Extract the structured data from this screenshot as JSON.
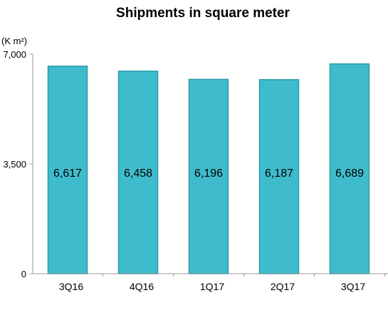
{
  "chart_data": {
    "type": "bar",
    "title": "Shipments in square meter",
    "unit_label": "(K m²)",
    "categories": [
      "3Q16",
      "4Q16",
      "1Q17",
      "2Q17",
      "3Q17"
    ],
    "values": [
      6617,
      6458,
      6196,
      6187,
      6689
    ],
    "data_labels": [
      "6,617",
      "6,458",
      "6,196",
      "6,187",
      "6,689"
    ],
    "y_ticks": [
      {
        "value": 0,
        "label": "0"
      },
      {
        "value": 3500,
        "label": "3,500"
      },
      {
        "value": 7000,
        "label": "7,000"
      }
    ],
    "ylim": [
      0,
      7000
    ],
    "grid": false,
    "legend": "none",
    "bar_color": "#3fbccc",
    "bar_edge_color": "#2a9aab"
  }
}
